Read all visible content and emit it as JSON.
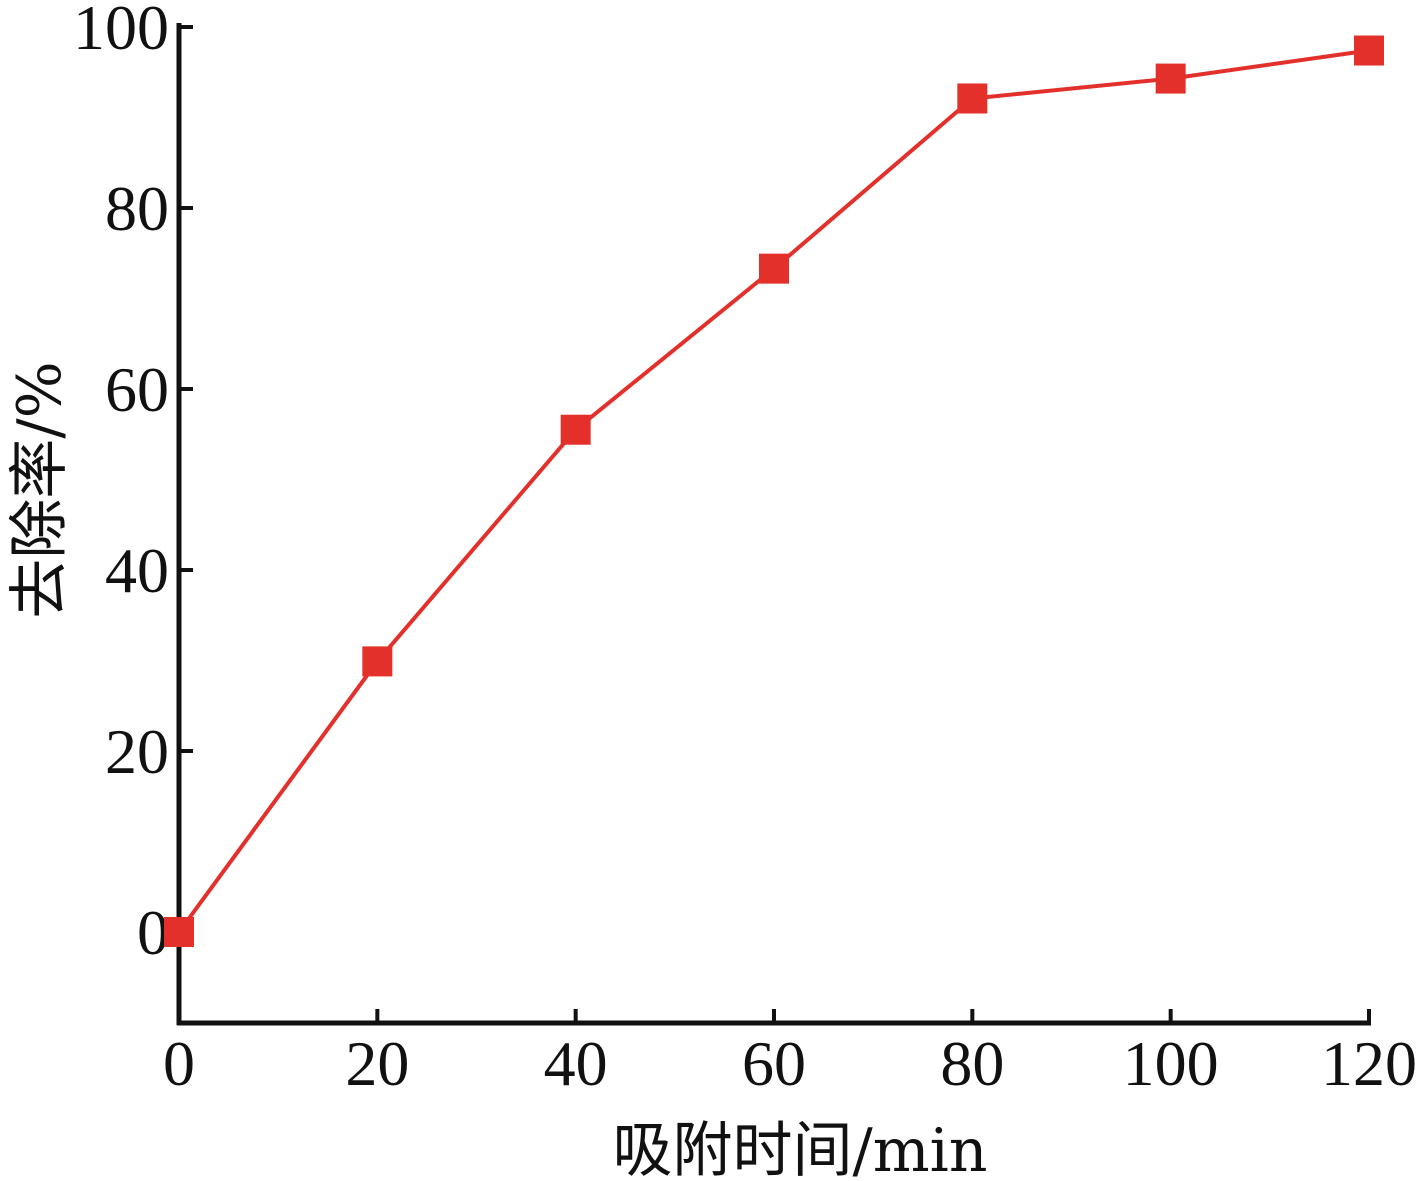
{
  "chart_data": {
    "type": "line",
    "title": "",
    "xlabel": "吸附时间/min",
    "ylabel": "去除率/%",
    "x": [
      0,
      20,
      40,
      60,
      80,
      100,
      120
    ],
    "series": [
      {
        "values": [
          0,
          29.9,
          55.5,
          73.3,
          92.1,
          94.3,
          97.4
        ]
      }
    ],
    "xlim": [
      0,
      120
    ],
    "ylim": [
      -10,
      100
    ],
    "xticks": [
      0,
      20,
      40,
      60,
      80,
      100,
      120
    ],
    "yticks": [
      0,
      20,
      40,
      60,
      80,
      100
    ],
    "grid": false,
    "legend": "none",
    "marker": "square",
    "colors": {
      "series": "#e3302b",
      "axis": "#111111"
    }
  }
}
